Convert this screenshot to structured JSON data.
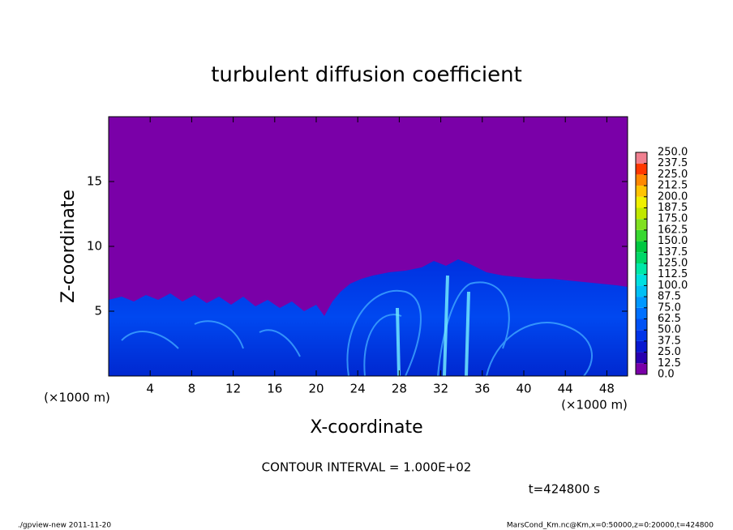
{
  "chart_data": {
    "type": "heatmap",
    "title": "turbulent diffusion coefficient",
    "x_label": "X-coordinate",
    "y_label": "Z-coordinate",
    "x_unit_left": "(×1000 m)",
    "x_unit_right": "(×1000 m)",
    "xlim": [
      0,
      50
    ],
    "ylim": [
      0,
      20
    ],
    "xticks": [
      4,
      8,
      12,
      16,
      20,
      24,
      28,
      32,
      36,
      40,
      44,
      48
    ],
    "yticks": [
      5,
      10,
      15
    ],
    "colorbar": {
      "lim": [
        0,
        250
      ],
      "ticks": [
        {
          "value": 0,
          "label": "0.0"
        },
        {
          "value": 12.5,
          "label": "12.5"
        },
        {
          "value": 25,
          "label": "25.0"
        },
        {
          "value": 37.5,
          "label": "37.5"
        },
        {
          "value": 50,
          "label": "50.0"
        },
        {
          "value": 62.5,
          "label": "62.5"
        },
        {
          "value": 75,
          "label": "75.0"
        },
        {
          "value": 87.5,
          "label": "87.5"
        },
        {
          "value": 100,
          "label": "100.0"
        },
        {
          "value": 112.5,
          "label": "112.5"
        },
        {
          "value": 125,
          "label": "125.0"
        },
        {
          "value": 137.5,
          "label": "137.5"
        },
        {
          "value": 150,
          "label": "150.0"
        },
        {
          "value": 162.5,
          "label": "162.5"
        },
        {
          "value": 175,
          "label": "175.0"
        },
        {
          "value": 187.5,
          "label": "187.5"
        },
        {
          "value": 200,
          "label": "200.0"
        },
        {
          "value": 212.5,
          "label": "212.5"
        },
        {
          "value": 225,
          "label": "225.0"
        },
        {
          "value": 237.5,
          "label": "237.5"
        },
        {
          "value": 250,
          "label": "250.0"
        }
      ],
      "colors": [
        "#7a00a8",
        "#2800b0",
        "#0818d0",
        "#0034e8",
        "#0052f5",
        "#0070ff",
        "#0098ff",
        "#00c0f5",
        "#00e0e0",
        "#00e8a8",
        "#00d868",
        "#00c840",
        "#38d830",
        "#80e020",
        "#c0e800",
        "#f0f000",
        "#ffc400",
        "#ff8800",
        "#ff3800",
        "#f08090"
      ]
    },
    "contour_interval": "CONTOUR INTERVAL = 1.000E+02",
    "time_label": "t=424800 s",
    "footer_left": "./gpview-new  2011-11-20",
    "footer_right": "MarsCond_Km.nc@Km,x=0:50000,z=0:20000,t=424800"
  }
}
